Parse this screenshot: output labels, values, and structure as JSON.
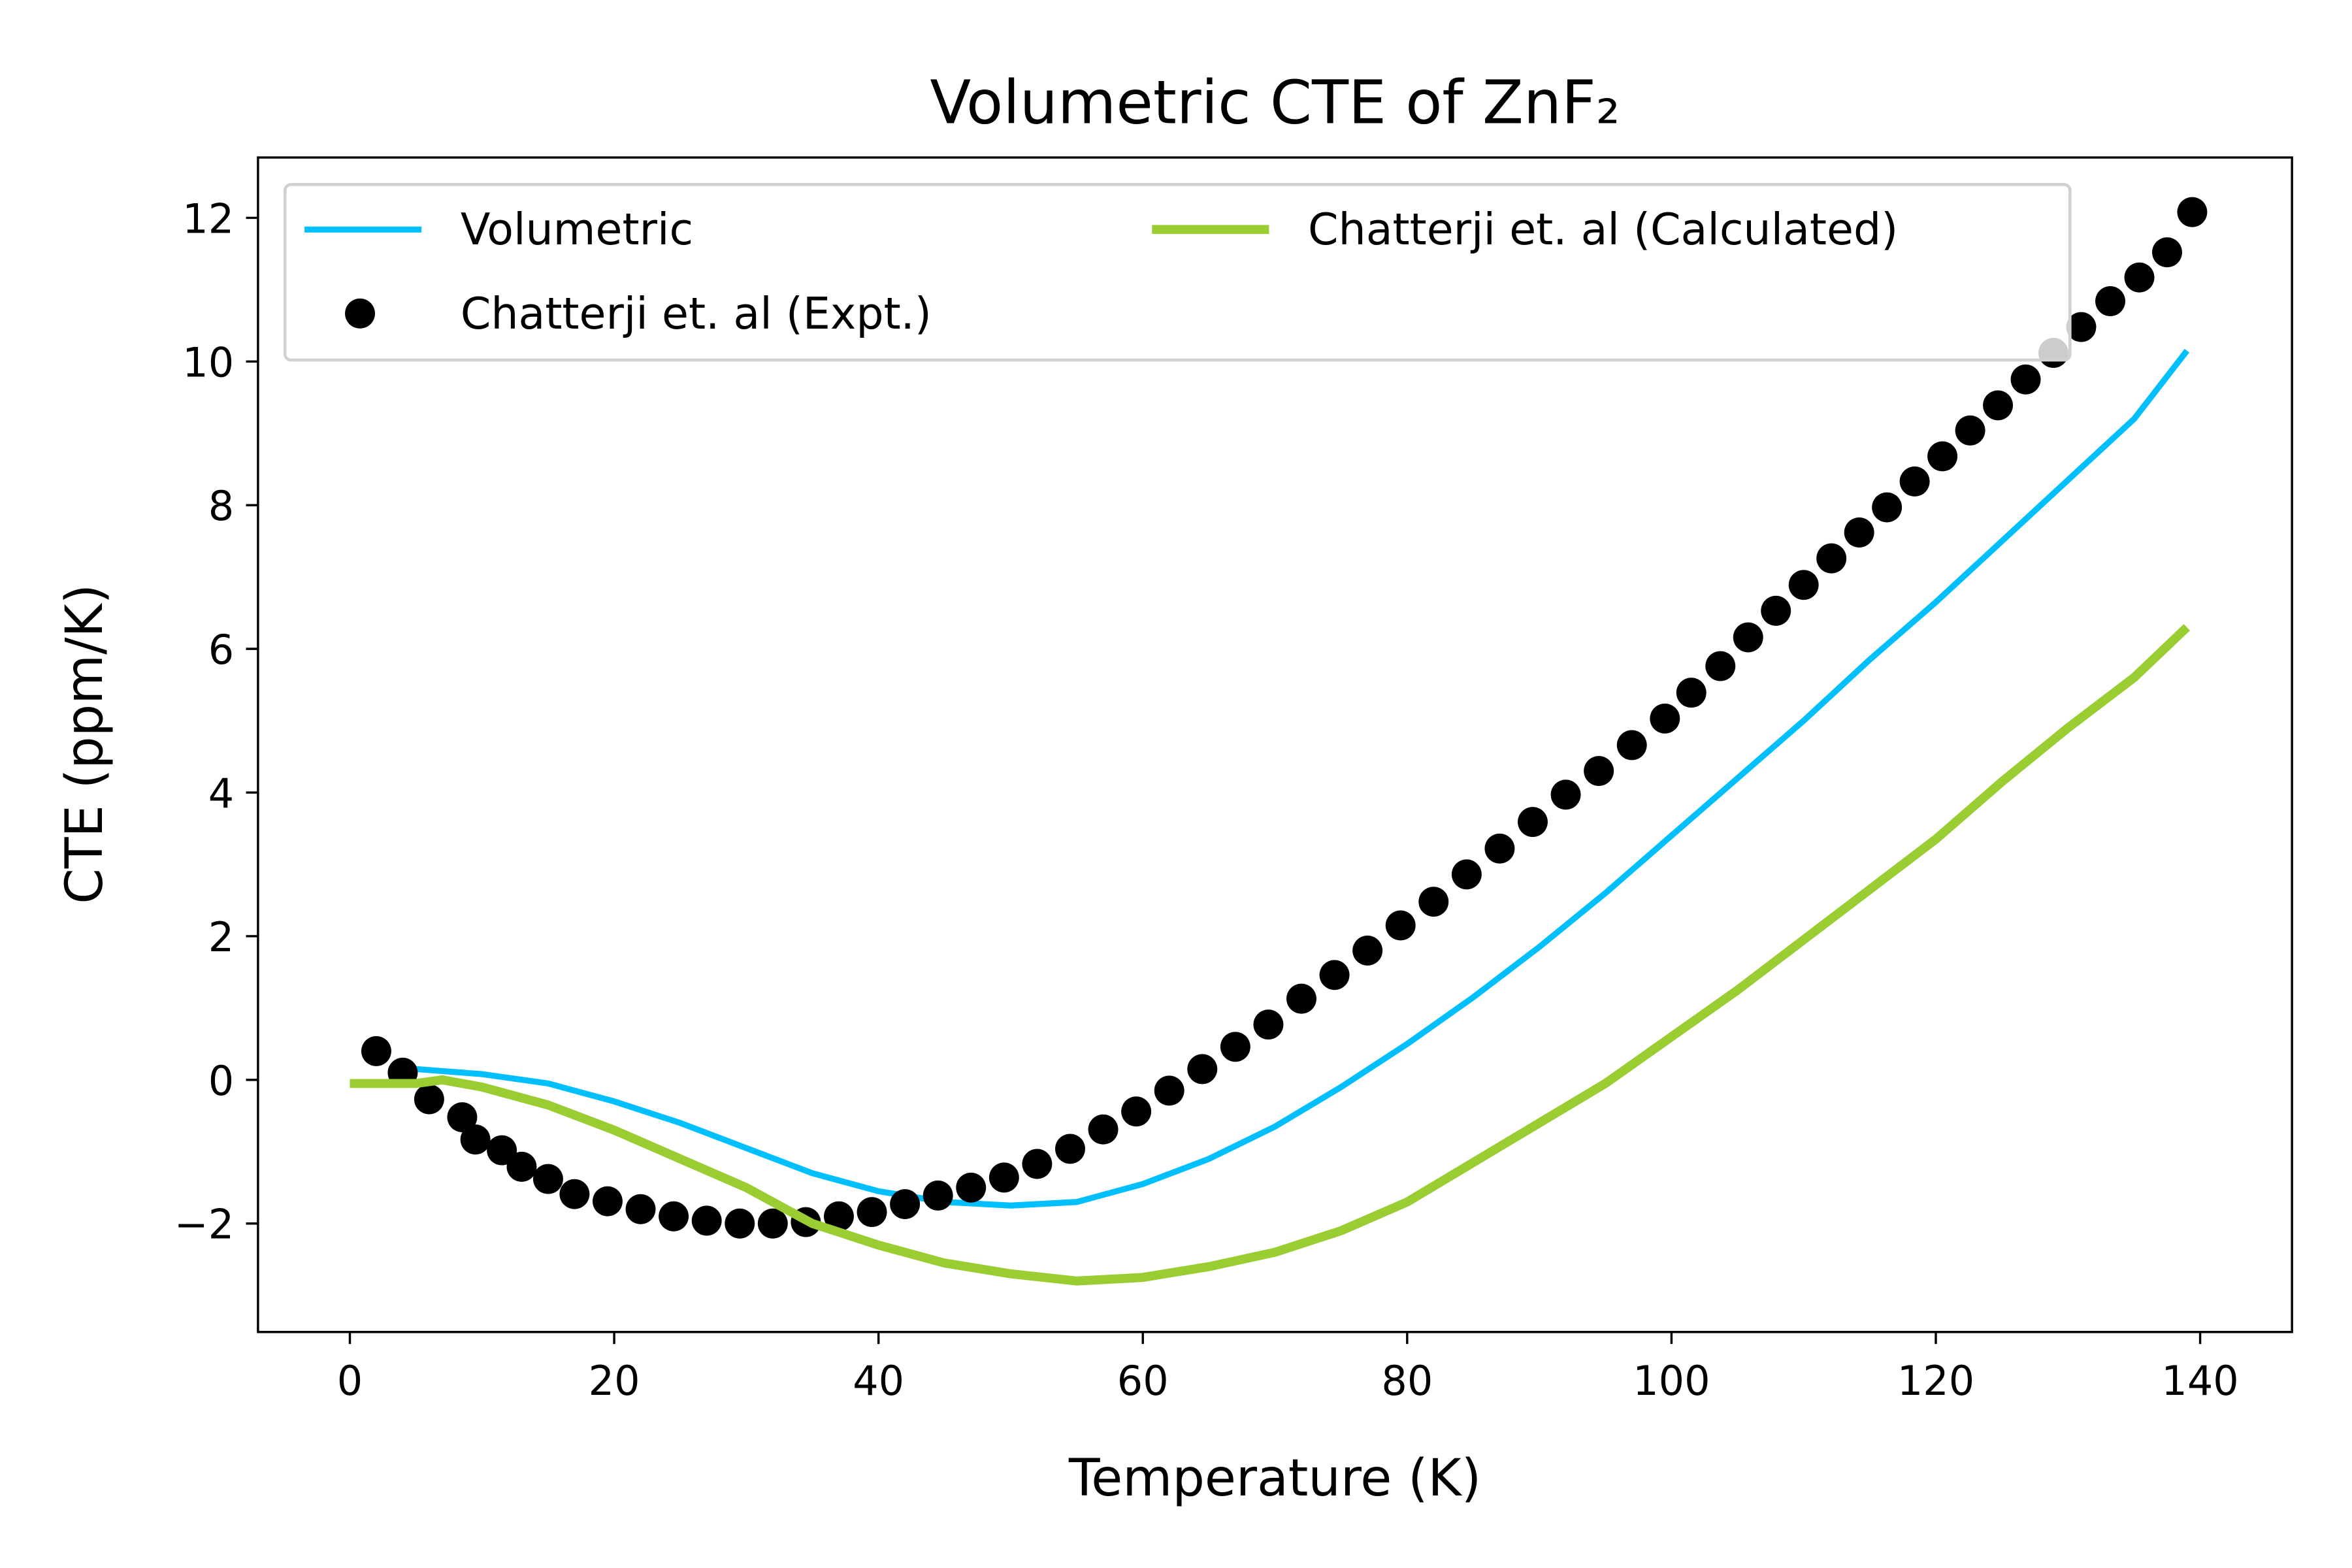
{
  "chart_data": {
    "type": "line",
    "title": "Volumetric CTE of ZnF₂",
    "xlabel": "Temperature (K)",
    "ylabel": "CTE (ppm/K)",
    "xlim": [
      -6.95,
      146.95
    ],
    "ylim": [
      -3.51,
      12.84
    ],
    "xticks": [
      0,
      20,
      40,
      60,
      80,
      100,
      120,
      140
    ],
    "yticks": [
      {
        "value": -2,
        "label": "−2"
      },
      0,
      2,
      4,
      6,
      8,
      10,
      12
    ],
    "legend": "upper left",
    "series": [
      {
        "name": "Volumetric",
        "color": "#00bfff",
        "style": "line",
        "x": [
          5,
          10,
          15,
          20,
          25,
          30,
          35,
          40,
          45,
          50,
          55,
          60,
          65,
          70,
          75,
          80,
          85,
          90,
          95,
          100,
          105,
          110,
          115,
          120,
          125,
          130,
          135,
          139
        ],
        "values": [
          0.15,
          0.08,
          -0.05,
          -0.3,
          -0.6,
          -0.95,
          -1.3,
          -1.55,
          -1.7,
          -1.75,
          -1.7,
          -1.45,
          -1.1,
          -0.65,
          -0.1,
          0.5,
          1.15,
          1.85,
          2.6,
          3.4,
          4.2,
          5.0,
          5.85,
          6.65,
          7.5,
          8.35,
          9.2,
          10.15
        ]
      },
      {
        "name": "Chatterji et. al (Expt.)",
        "color": "#000000",
        "style": "scatter",
        "x": [
          2,
          4,
          6,
          8.5,
          9.5,
          11.5,
          13,
          15,
          17,
          19.5,
          22,
          24.5,
          27,
          29.5,
          32,
          34.5,
          37,
          39.5,
          42,
          44.5,
          47,
          49.5,
          52,
          54.5,
          57,
          59.5,
          62,
          64.5,
          67,
          69.5,
          72,
          74.5,
          77,
          79.5,
          82,
          84.5,
          87,
          89.5,
          92,
          94.5,
          97,
          99.5,
          101.5,
          103.7,
          105.8,
          107.9,
          110,
          112.1,
          114.2,
          116.3,
          118.4,
          120.5,
          122.6,
          124.7,
          126.8,
          128.9,
          131,
          133.2,
          135.4,
          137.5,
          139.4
        ],
        "values": [
          0.4,
          0.1,
          -0.27,
          -0.52,
          -0.83,
          -0.98,
          -1.21,
          -1.38,
          -1.59,
          -1.69,
          -1.8,
          -1.9,
          -1.96,
          -2.0,
          -2.0,
          -1.98,
          -1.9,
          -1.84,
          -1.73,
          -1.61,
          -1.5,
          -1.36,
          -1.17,
          -0.96,
          -0.69,
          -0.44,
          -0.15,
          0.15,
          0.46,
          0.77,
          1.13,
          1.46,
          1.8,
          2.15,
          2.48,
          2.86,
          3.22,
          3.59,
          3.97,
          4.3,
          4.66,
          5.03,
          5.39,
          5.76,
          6.16,
          6.53,
          6.89,
          7.26,
          7.62,
          7.97,
          8.33,
          8.68,
          9.04,
          9.39,
          9.75,
          10.12,
          10.48,
          10.84,
          11.17,
          11.52,
          12.08
        ]
      },
      {
        "name": "Chatterji et. al (Calculated)",
        "color": "#9acd32",
        "style": "thick-line",
        "x": [
          0,
          5,
          7,
          10,
          15,
          20,
          25,
          30,
          35,
          40,
          45,
          50,
          55,
          60,
          65,
          70,
          75,
          80,
          85,
          90,
          95,
          100,
          105,
          110,
          115,
          120,
          125,
          130,
          135,
          139
        ],
        "values": [
          -0.05,
          -0.05,
          0,
          -0.1,
          -0.35,
          -0.7,
          -1.1,
          -1.5,
          -2.0,
          -2.3,
          -2.55,
          -2.7,
          -2.8,
          -2.75,
          -2.6,
          -2.4,
          -2.1,
          -1.7,
          -1.15,
          -0.6,
          -0.05,
          0.6,
          1.25,
          1.95,
          2.65,
          3.35,
          4.15,
          4.9,
          5.6,
          6.3
        ]
      }
    ]
  }
}
